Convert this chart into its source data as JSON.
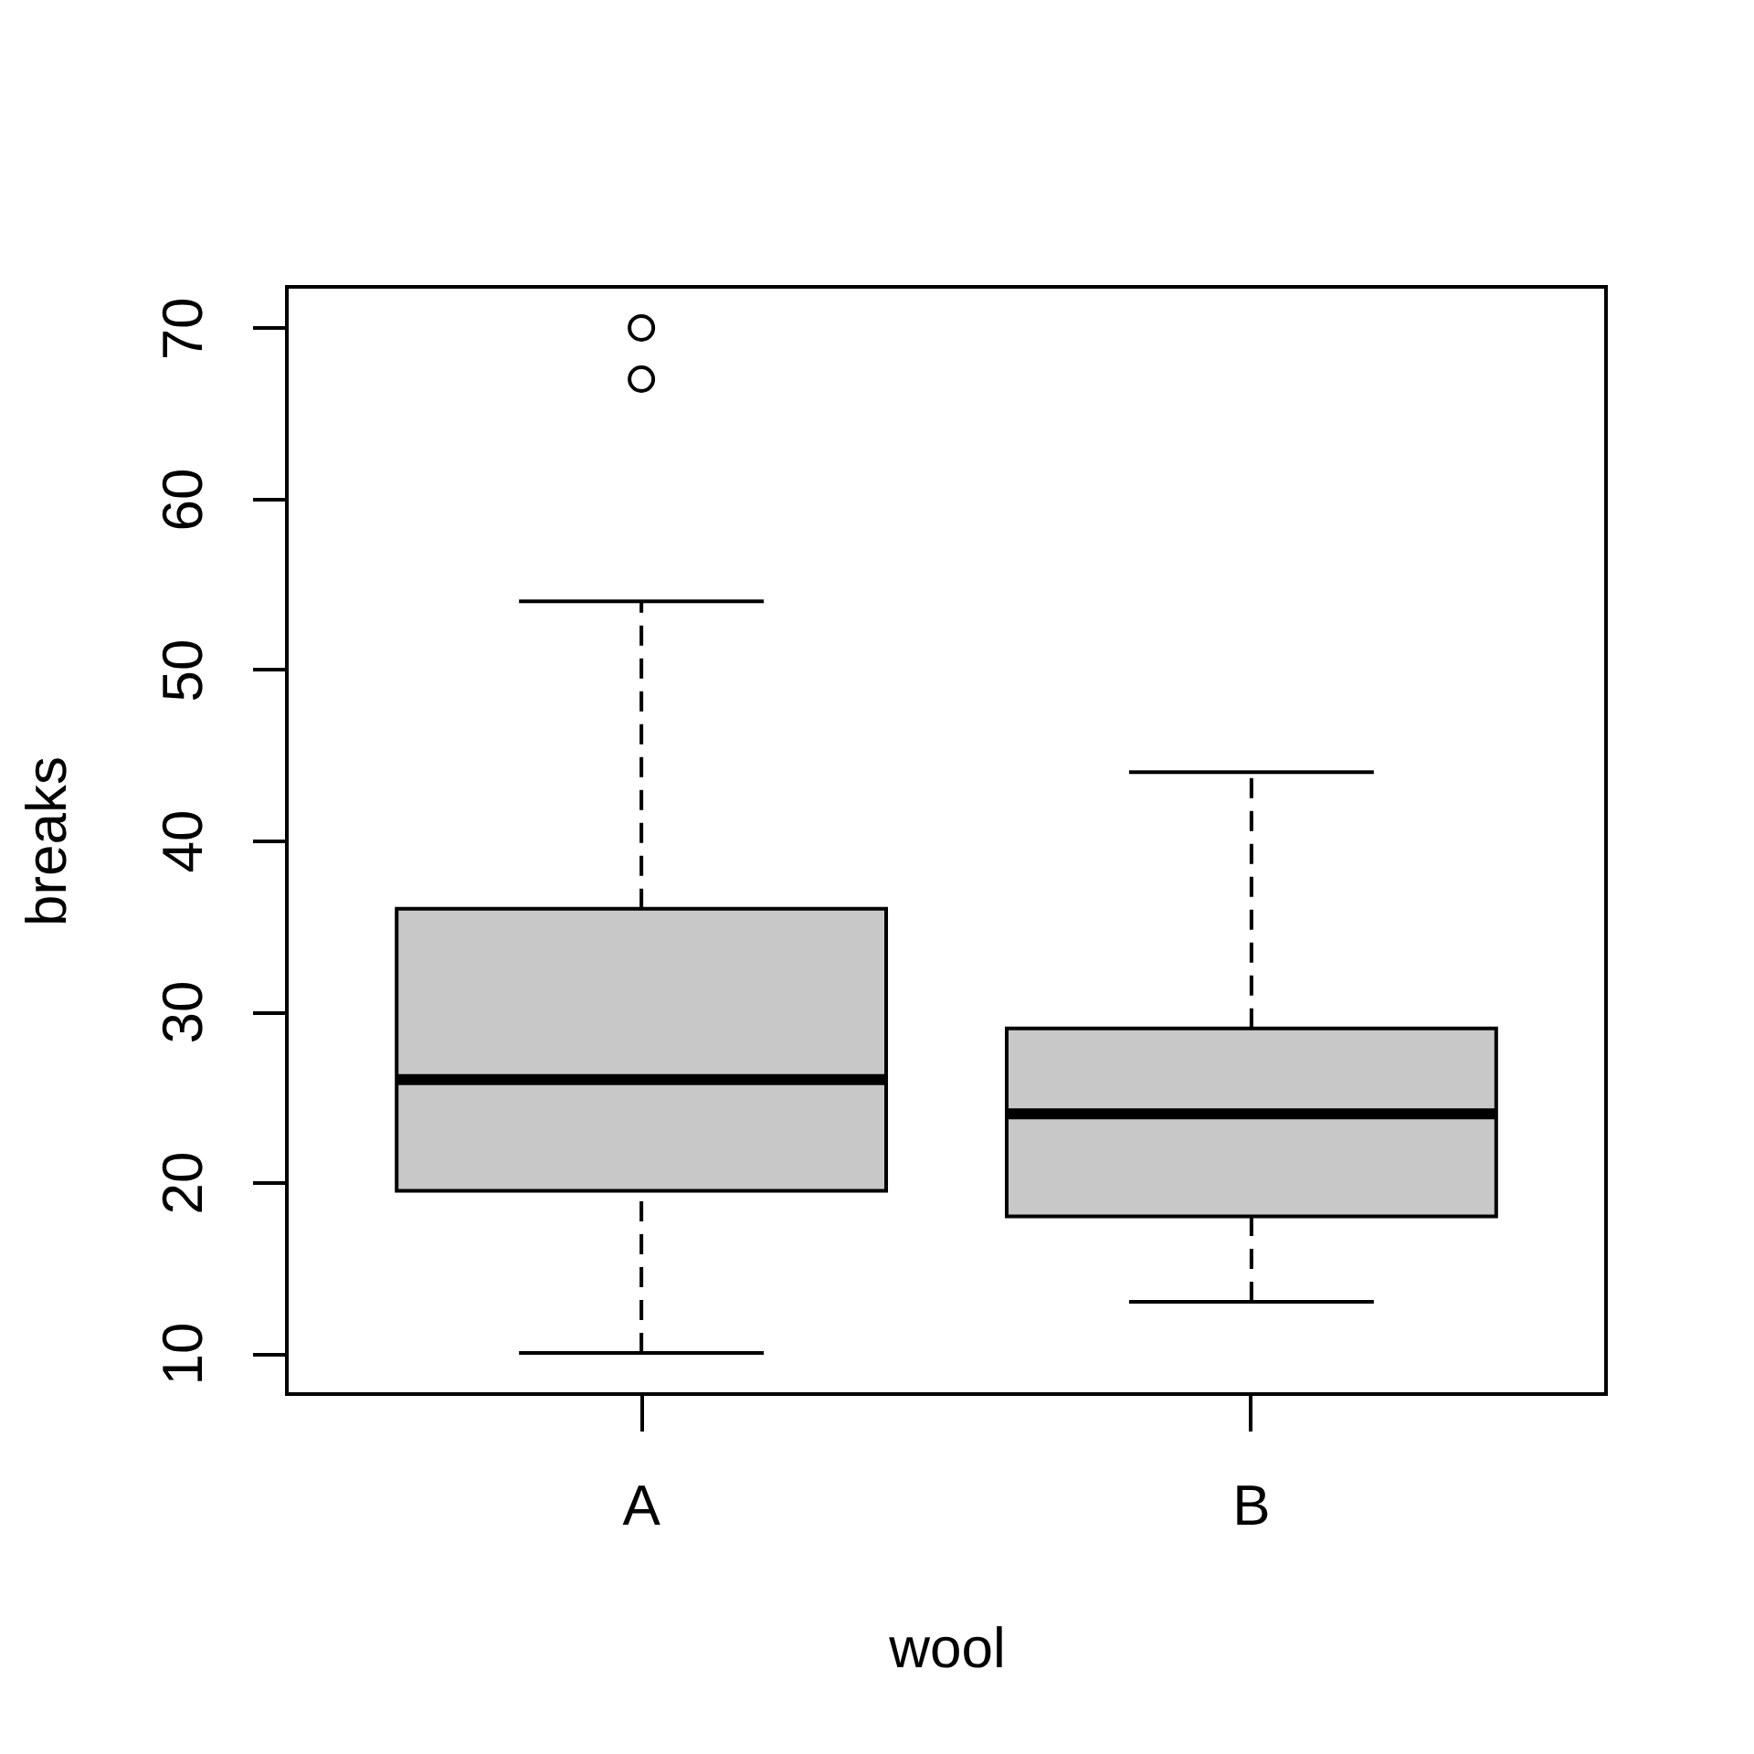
{
  "chart_data": {
    "type": "box",
    "xlabel": "wool",
    "ylabel": "breaks",
    "categories": [
      "A",
      "B"
    ],
    "boxes": [
      {
        "low": 10,
        "q1": 19.5,
        "median": 26,
        "q3": 36,
        "high": 54,
        "outliers": [
          67,
          70
        ]
      },
      {
        "low": 13,
        "q1": 18,
        "median": 24,
        "q3": 29,
        "high": 44
      }
    ],
    "color": "#c8c8c8",
    "line_style": "dashed",
    "marker": "circle",
    "ylim": [
      7.6,
      72.4
    ],
    "yticks": [
      10,
      20,
      30,
      40,
      50,
      60,
      70
    ]
  }
}
